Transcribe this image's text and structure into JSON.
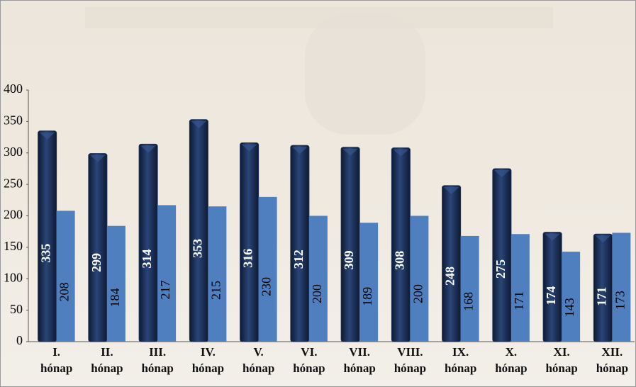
{
  "chart_data": {
    "type": "bar",
    "categories": [
      "I. hónap",
      "II. hónap",
      "III. hónap",
      "IV. hónap",
      "V. hónap",
      "VI. hónap",
      "VII. hónap",
      "VIII. hónap",
      "IX. hónap",
      "X. hónap",
      "XI. hónap",
      "XII. hónap"
    ],
    "series": [
      {
        "color": "#1c2f57",
        "values": [
          335,
          299,
          314,
          353,
          316,
          312,
          309,
          308,
          248,
          275,
          174,
          171
        ]
      },
      {
        "color": "#4f7fbf",
        "values": [
          208,
          184,
          217,
          215,
          230,
          200,
          189,
          200,
          168,
          171,
          143,
          173
        ]
      }
    ],
    "ylim": [
      0,
      400
    ],
    "yticks": [
      0,
      50,
      100,
      150,
      200,
      250,
      300,
      350,
      400
    ],
    "grid": false
  }
}
